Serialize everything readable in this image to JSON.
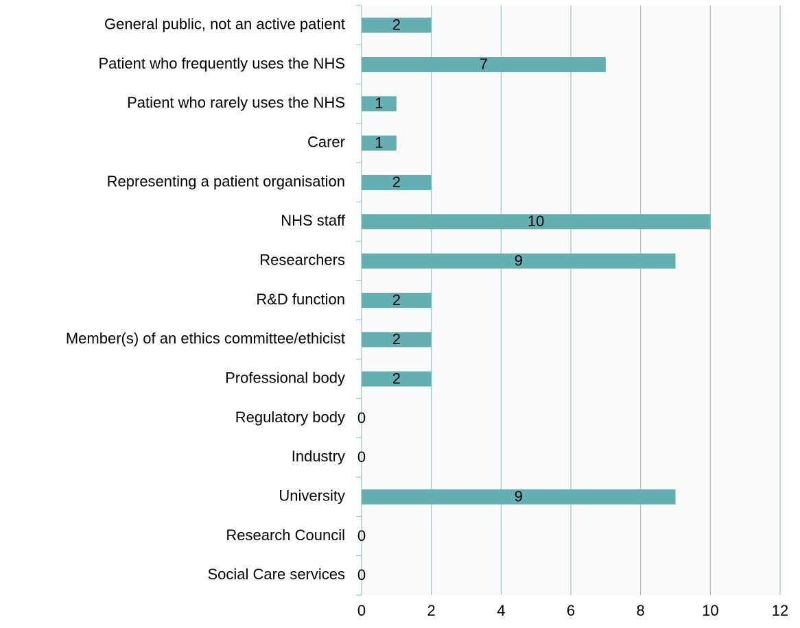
{
  "chart_data": {
    "type": "bar",
    "orientation": "horizontal",
    "categories": [
      "General public, not an active patient",
      "Patient who frequently uses the NHS",
      "Patient who rarely uses the NHS",
      "Carer",
      "Representing a patient organisation",
      "NHS staff",
      "Researchers",
      "R&D function",
      "Member(s) of an ethics committee/ethicist",
      "Professional body",
      "Regulatory body",
      "Industry",
      "University",
      "Research Council",
      "Social Care services"
    ],
    "values": [
      2,
      7,
      1,
      1,
      2,
      10,
      9,
      2,
      2,
      2,
      0,
      0,
      9,
      0,
      0
    ],
    "color": "#64afb2",
    "xlim": [
      0,
      12
    ],
    "xticks": [
      0,
      2,
      4,
      6,
      8,
      10,
      12
    ],
    "grid": true
  }
}
